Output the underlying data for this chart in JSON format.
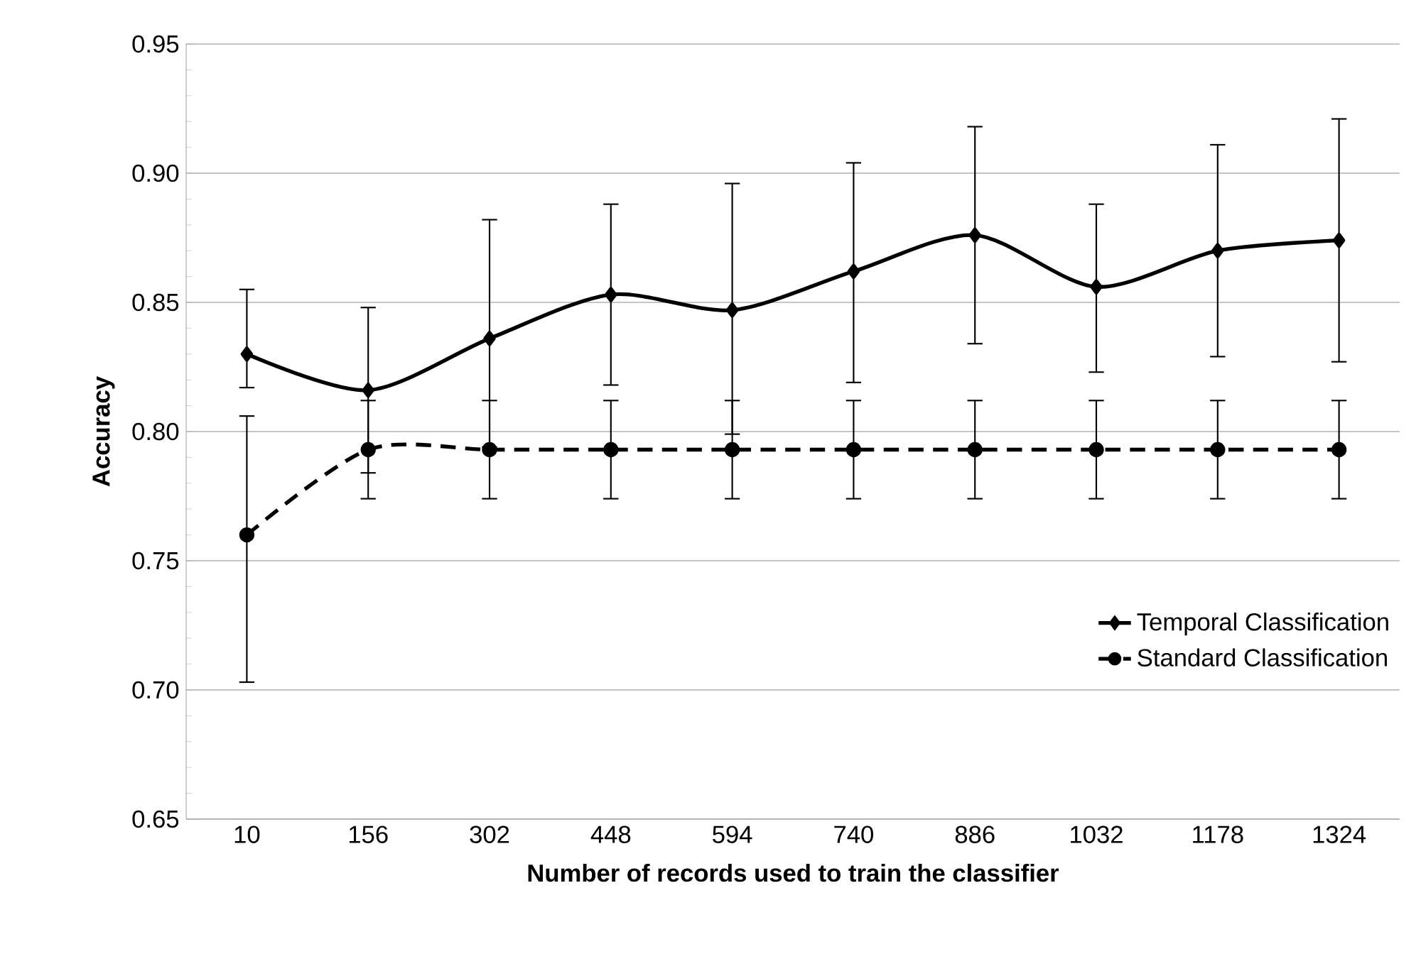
{
  "chart_data": {
    "type": "line",
    "xlabel": "Number of records used to train the classifier",
    "ylabel": "Accuracy",
    "categories": [
      "10",
      "156",
      "302",
      "448",
      "594",
      "740",
      "886",
      "1032",
      "1178",
      "1324"
    ],
    "series": [
      {
        "name": "Temporal Classification",
        "color": "#000000",
        "marker": "diamond",
        "line_style": "solid",
        "values": [
          0.83,
          0.816,
          0.836,
          0.853,
          0.847,
          0.862,
          0.876,
          0.856,
          0.87,
          0.874
        ],
        "errors": [
          [
            0.817,
            0.855
          ],
          [
            0.784,
            0.848
          ],
          [
            0.794,
            0.882
          ],
          [
            0.818,
            0.888
          ],
          [
            0.799,
            0.896
          ],
          [
            0.819,
            0.904
          ],
          [
            0.834,
            0.918
          ],
          [
            0.823,
            0.888
          ],
          [
            0.829,
            0.911
          ],
          [
            0.827,
            0.921
          ]
        ]
      },
      {
        "name": "Standard Classification",
        "color": "#000000",
        "marker": "circle",
        "line_style": "dashed",
        "values": [
          0.76,
          0.793,
          0.793,
          0.793,
          0.793,
          0.793,
          0.793,
          0.793,
          0.793,
          0.793
        ],
        "errors": [
          [
            0.703,
            0.806
          ],
          [
            0.774,
            0.812
          ],
          [
            0.774,
            0.812
          ],
          [
            0.774,
            0.812
          ],
          [
            0.774,
            0.812
          ],
          [
            0.774,
            0.812
          ],
          [
            0.774,
            0.812
          ],
          [
            0.774,
            0.812
          ],
          [
            0.774,
            0.812
          ],
          [
            0.774,
            0.812
          ]
        ]
      }
    ],
    "ylim": [
      0.65,
      0.95
    ],
    "yticks": [
      {
        "value": 0.65,
        "label": "0.65"
      },
      {
        "value": 0.7,
        "label": "0.70"
      },
      {
        "value": 0.75,
        "label": "0.75"
      },
      {
        "value": 0.8,
        "label": "0.80"
      },
      {
        "value": 0.85,
        "label": "0.85"
      },
      {
        "value": 0.9,
        "label": "0.90"
      },
      {
        "value": 0.95,
        "label": "0.95"
      }
    ],
    "grid": "y",
    "legend": "right"
  }
}
